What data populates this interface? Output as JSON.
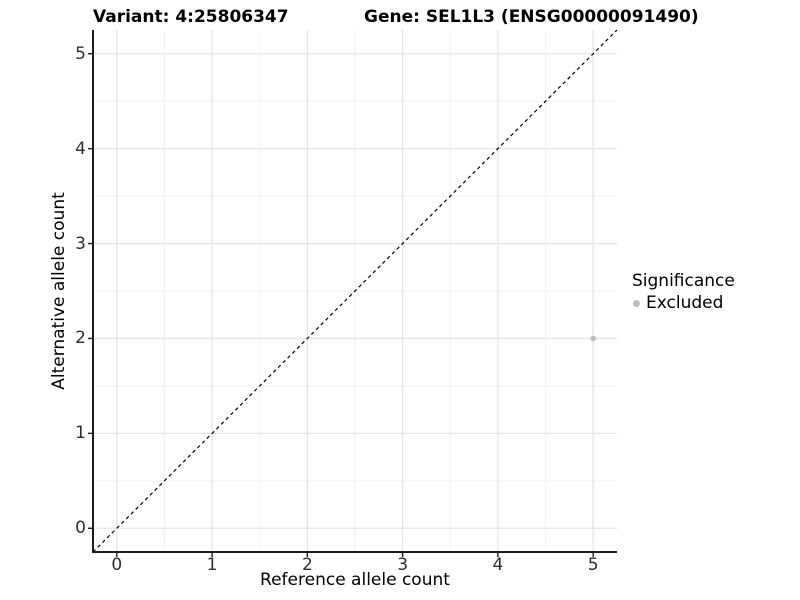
{
  "chart_data": {
    "type": "scatter",
    "title_left": "Variant: 4:25806347",
    "title_right": "Gene: SEL1L3 (ENSG00000091490)",
    "xlabel": "Reference allele count",
    "ylabel": "Alternative allele count",
    "xlim": [
      -0.25,
      5.25
    ],
    "ylim": [
      -0.25,
      5.25
    ],
    "xticks": [
      0,
      1,
      2,
      3,
      4,
      5
    ],
    "yticks": [
      0,
      1,
      2,
      3,
      4,
      5
    ],
    "xminor": [
      0.5,
      1.5,
      2.5,
      3.5,
      4.5
    ],
    "yminor": [
      0.5,
      1.5,
      2.5,
      3.5,
      4.5
    ],
    "grid": "major+minor, white panel, axis lines left+bottom only",
    "identity_line": {
      "style": "dashed",
      "from": [
        -0.25,
        -0.25
      ],
      "to": [
        5.25,
        5.25
      ],
      "color": "#000000"
    },
    "series": [
      {
        "name": "Excluded",
        "color": "#bebebe",
        "points": [
          {
            "x": 5,
            "y": 2
          }
        ]
      }
    ],
    "legend": {
      "title": "Significance",
      "position": "right-middle",
      "items": [
        {
          "label": "Excluded",
          "color": "#bebebe"
        }
      ]
    },
    "colors": {
      "grid_major": "#e5e5e5",
      "grid_minor": "#f2f2f2",
      "axis_line": "#1c1c1c",
      "tick_mark": "#1c1c1c",
      "tick_text": "#2e2e2e",
      "background": "#ffffff"
    }
  }
}
